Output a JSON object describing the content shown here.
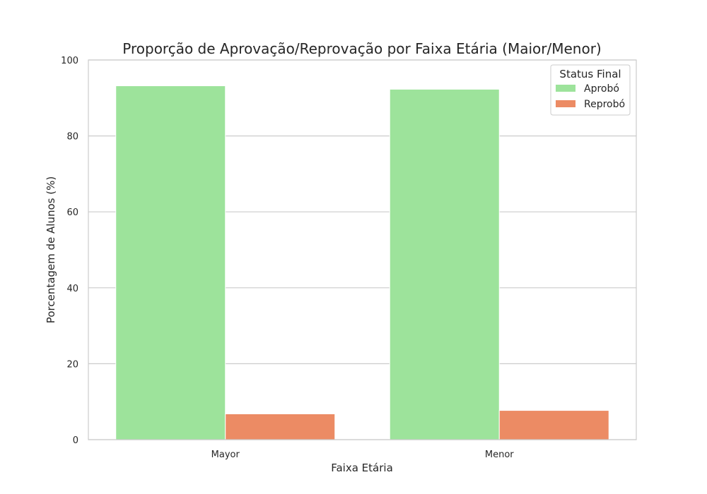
{
  "chart_data": {
    "type": "bar",
    "title": "Proporção de Aprovação/Reprovação por Faixa Etária (Maior/Menor)",
    "xlabel": "Faixa Etária",
    "ylabel": "Porcentagem de Alunos (%)",
    "categories": [
      "Mayor",
      "Menor"
    ],
    "series": [
      {
        "name": "Aprobó",
        "values": [
          93.2,
          92.3
        ],
        "color": "#9de39b"
      },
      {
        "name": "Reprobó",
        "values": [
          6.8,
          7.7
        ],
        "color": "#ec8b64"
      }
    ],
    "ylim": [
      0,
      100
    ],
    "yticks": [
      0,
      20,
      40,
      60,
      80,
      100
    ],
    "grid": "horizontal",
    "legend": {
      "title": "Status Final",
      "placement": "top-right"
    }
  }
}
